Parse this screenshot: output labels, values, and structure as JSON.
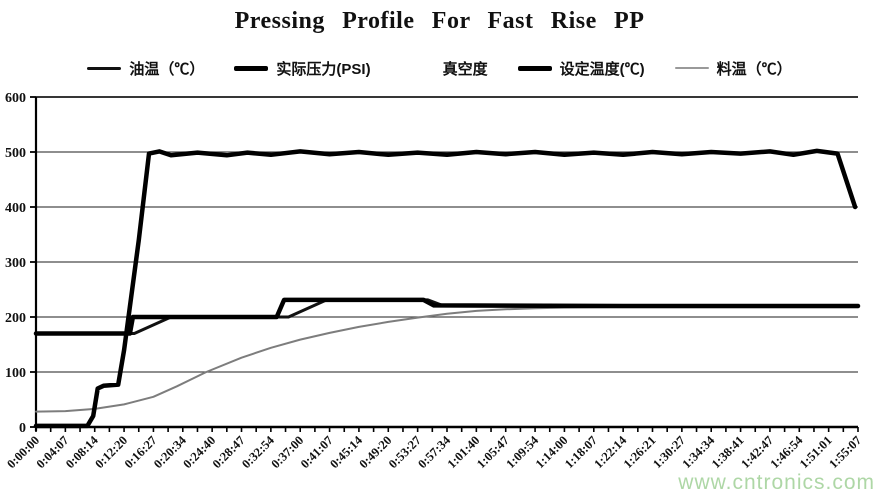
{
  "title": "Pressing Profile For Fast Rise PP",
  "watermark": {
    "text": "www.cntronics.com",
    "color": "#aed7a6"
  },
  "legend": {
    "items": [
      {
        "key": "oil-temp",
        "label": "油温（℃）",
        "swatch_color": "#111111",
        "swatch_width": 3
      },
      {
        "key": "pressure",
        "label": "实际压力(PSI)",
        "swatch_color": "#000000",
        "swatch_width": 5
      },
      {
        "key": "vacuum",
        "label": "真空度",
        "swatch_color": "#ffffff",
        "swatch_width": 0
      },
      {
        "key": "set-temp",
        "label": "设定温度(℃)",
        "swatch_color": "#000000",
        "swatch_width": 5
      },
      {
        "key": "material-temp",
        "label": "料温（℃）",
        "swatch_color": "#999999",
        "swatch_width": 2
      }
    ]
  },
  "chart_data": {
    "type": "line",
    "title": "Pressing Profile For Fast Rise PP",
    "legend_position": "top",
    "grid": "horizontal",
    "x_axis": {
      "unit": "time",
      "minor_ticks_per_interval": 2,
      "labels": [
        "0:00:00",
        "0:04:07",
        "0:08:14",
        "0:12:20",
        "0:16:27",
        "0:20:34",
        "0:24:40",
        "0:28:47",
        "0:32:54",
        "0:37:00",
        "0:41:07",
        "0:45:14",
        "0:49:20",
        "0:53:27",
        "0:57:34",
        "1:01:40",
        "1:05:47",
        "1:09:54",
        "1:14:00",
        "1:18:07",
        "1:22:14",
        "1:26:21",
        "1:30:27",
        "1:34:34",
        "1:38:41",
        "1:42:47",
        "1:46:54",
        "1:51:01",
        "1:55:07"
      ]
    },
    "y_axis": {
      "range": [
        0,
        600
      ],
      "ticks": [
        0,
        100,
        200,
        300,
        400,
        500,
        600
      ]
    },
    "series": [
      {
        "key": "material-temp",
        "name": "料温（℃）",
        "color": "#7d7d7d",
        "width": 2,
        "points": [
          [
            0,
            28
          ],
          [
            1,
            29
          ],
          [
            2,
            33
          ],
          [
            3,
            41
          ],
          [
            4,
            55
          ],
          [
            4.8,
            74
          ],
          [
            5.8,
            100
          ],
          [
            7,
            126
          ],
          [
            8,
            144
          ],
          [
            9,
            159
          ],
          [
            10,
            171
          ],
          [
            11,
            182
          ],
          [
            12,
            191
          ],
          [
            13,
            199
          ],
          [
            14,
            206
          ],
          [
            15,
            211
          ],
          [
            16,
            214
          ],
          [
            17,
            216
          ],
          [
            18,
            217
          ],
          [
            20,
            218
          ],
          [
            22,
            218
          ],
          [
            24,
            218
          ],
          [
            26,
            218
          ],
          [
            28,
            218
          ]
        ]
      },
      {
        "key": "oil-temp",
        "name": "油温（℃）",
        "color": "#111111",
        "width": 3,
        "points": [
          [
            0,
            170
          ],
          [
            3.35,
            170
          ],
          [
            4.6,
            200
          ],
          [
            8.6,
            200
          ],
          [
            9.9,
            231
          ],
          [
            13.35,
            231
          ],
          [
            13.9,
            220
          ],
          [
            20,
            220
          ],
          [
            28,
            220
          ]
        ]
      },
      {
        "key": "set-temp",
        "name": "设定温度(℃)",
        "color": "#000000",
        "width": 4.5,
        "points": [
          [
            0,
            170
          ],
          [
            3.2,
            170
          ],
          [
            3.3,
            200
          ],
          [
            8.2,
            200
          ],
          [
            8.45,
            231
          ],
          [
            13.2,
            231
          ],
          [
            13.55,
            221
          ],
          [
            20,
            220
          ],
          [
            28,
            220
          ]
        ]
      },
      {
        "key": "vacuum",
        "name": "真空度",
        "color": "#ffffff",
        "width": 0,
        "points": []
      },
      {
        "key": "pressure",
        "name": "实际压力(PSI)",
        "color": "#000000",
        "width": 4.5,
        "points": [
          [
            0,
            2
          ],
          [
            1.75,
            2
          ],
          [
            1.95,
            20
          ],
          [
            2.1,
            70
          ],
          [
            2.3,
            75
          ],
          [
            2.8,
            77
          ],
          [
            3.0,
            140
          ],
          [
            3.5,
            340
          ],
          [
            3.85,
            497
          ],
          [
            4.2,
            501
          ],
          [
            4.6,
            494
          ],
          [
            5.5,
            499
          ],
          [
            6.5,
            494
          ],
          [
            7.2,
            499
          ],
          [
            8,
            495
          ],
          [
            9,
            501
          ],
          [
            10,
            496
          ],
          [
            11,
            500
          ],
          [
            12,
            495
          ],
          [
            13,
            499
          ],
          [
            14,
            495
          ],
          [
            15,
            500
          ],
          [
            16,
            496
          ],
          [
            17,
            500
          ],
          [
            18,
            495
          ],
          [
            19,
            499
          ],
          [
            20,
            495
          ],
          [
            21,
            500
          ],
          [
            22,
            496
          ],
          [
            23,
            500
          ],
          [
            24,
            497
          ],
          [
            25,
            501
          ],
          [
            25.8,
            495
          ],
          [
            26.6,
            502
          ],
          [
            27.3,
            497
          ],
          [
            27.9,
            400
          ]
        ]
      }
    ]
  }
}
